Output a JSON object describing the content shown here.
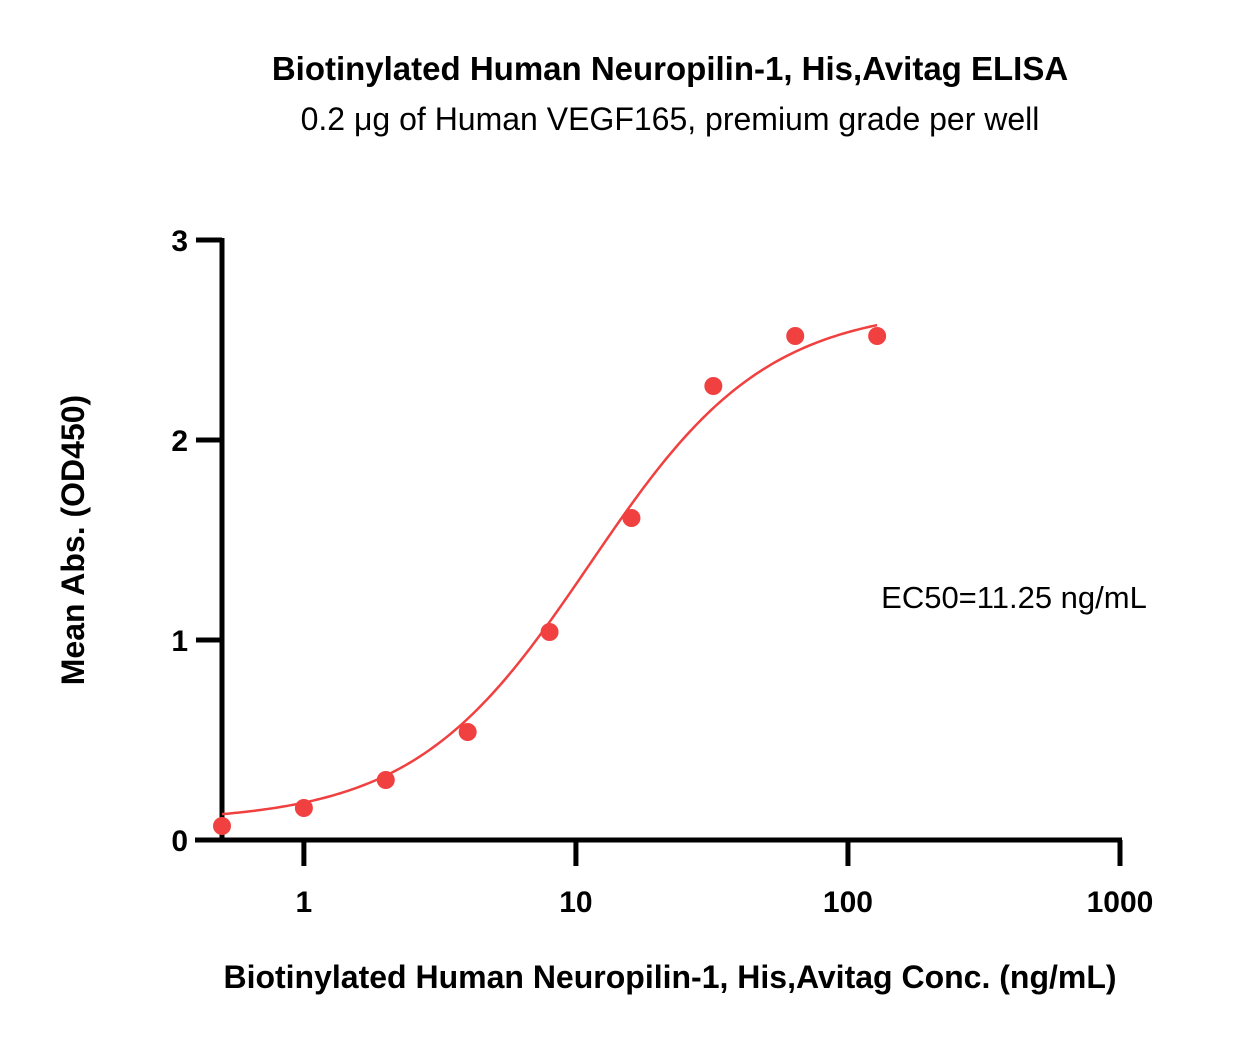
{
  "chart_data": {
    "type": "scatter",
    "title": "Biotinylated Human Neuropilin-1, His,Avitag  ELISA",
    "subtitle": "0.2 μg of Human VEGF165, premium grade per well",
    "xlabel": "Biotinylated Human Neuropilin-1, His,Avitag  Conc. (ng/mL)",
    "ylabel": "Mean Abs. (OD450)",
    "x_scale": "log",
    "xlim": [
      0.5,
      1000
    ],
    "ylim": [
      0,
      3
    ],
    "x_ticks": [
      1,
      10,
      100,
      1000
    ],
    "x_tick_labels": [
      "1",
      "10",
      "100",
      "1000"
    ],
    "y_ticks": [
      0,
      1,
      2,
      3
    ],
    "y_tick_labels": [
      "0",
      "1",
      "2",
      "3"
    ],
    "grid": false,
    "color": "#f04040",
    "series": [
      {
        "x": [
          0.5,
          1,
          2,
          4,
          8,
          16,
          32,
          64,
          128
        ],
        "y": [
          0.07,
          0.16,
          0.3,
          0.54,
          1.04,
          1.61,
          2.27,
          2.52,
          2.52
        ]
      }
    ],
    "fit_curve": {
      "type": "4PL",
      "bottom": 0.09,
      "top": 2.67,
      "ec50": 11.25,
      "hill": 1.34,
      "x_range": [
        0.5,
        128
      ]
    },
    "annotations": [
      {
        "text": "EC50=11.25 ng/mL"
      }
    ]
  }
}
